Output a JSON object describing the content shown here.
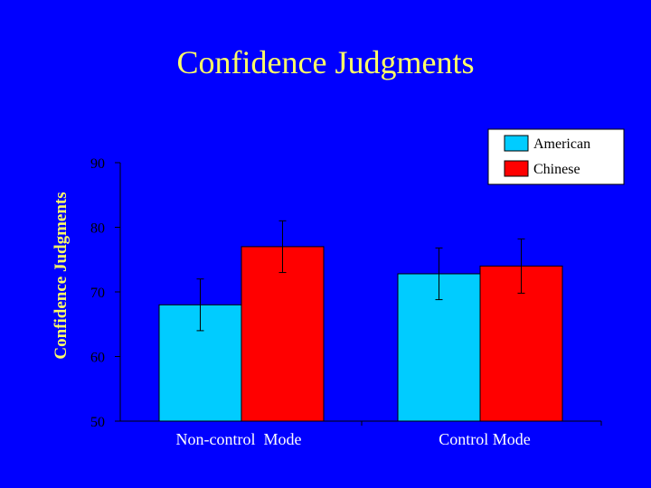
{
  "chart_data": {
    "type": "bar",
    "title": "Confidence Judgments",
    "xlabel": "",
    "ylabel": "Confidence Judgments",
    "categories": [
      "Non-control  Mode",
      "Control Mode"
    ],
    "series": [
      {
        "name": "American",
        "color": "#00ccff",
        "values": [
          68,
          72.8
        ],
        "error": [
          4,
          4
        ]
      },
      {
        "name": "Chinese",
        "color": "#ff0000",
        "values": [
          77,
          74
        ],
        "error": [
          4,
          4.2
        ]
      }
    ],
    "ylim": [
      50,
      90
    ],
    "yticks": [
      50,
      60,
      70,
      80,
      90
    ],
    "legend_position": "top-right",
    "grid": false,
    "colors": {
      "background": "#0000ff",
      "title": "#ffff66",
      "axis": "#000000"
    }
  }
}
